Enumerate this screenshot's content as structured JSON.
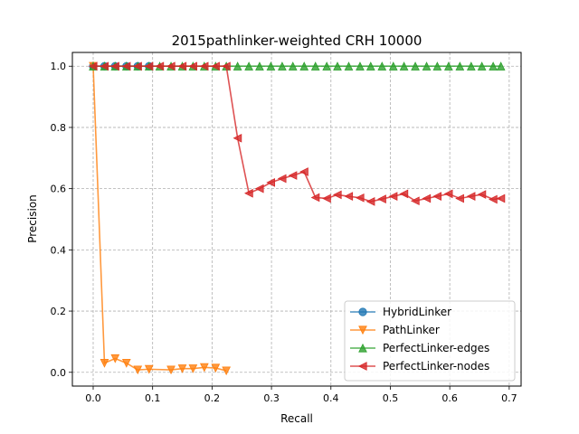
{
  "chart_data": {
    "type": "line",
    "title": "2015pathlinker-weighted CRH 10000",
    "xlabel": "Recall",
    "ylabel": "Precision",
    "xlim": [
      -0.035,
      0.72
    ],
    "ylim": [
      -0.045,
      1.045
    ],
    "xticks": [
      0.0,
      0.1,
      0.2,
      0.3,
      0.4,
      0.5,
      0.6,
      0.7
    ],
    "xtick_labels": [
      "0.0",
      "0.1",
      "0.2",
      "0.3",
      "0.4",
      "0.5",
      "0.6",
      "0.7"
    ],
    "yticks": [
      0.0,
      0.2,
      0.4,
      0.6,
      0.8,
      1.0
    ],
    "ytick_labels": [
      "0.0",
      "0.2",
      "0.4",
      "0.6",
      "0.8",
      "1.0"
    ],
    "grid": true,
    "legend_position": "lower-right",
    "series": [
      {
        "name": "HybridLinker",
        "color": "#1f77b4",
        "marker": "circle",
        "points": [
          [
            0.0,
            1.0
          ],
          [
            0.019,
            1.0
          ],
          [
            0.037,
            1.0
          ],
          [
            0.056,
            1.0
          ],
          [
            0.075,
            1.0
          ],
          [
            0.094,
            1.0
          ]
        ]
      },
      {
        "name": "PathLinker",
        "color": "#ff7f0e",
        "marker": "triangle-down",
        "points": [
          [
            0.0,
            1.0
          ],
          [
            0.019,
            0.03
          ],
          [
            0.037,
            0.045
          ],
          [
            0.056,
            0.03
          ],
          [
            0.075,
            0.008
          ],
          [
            0.094,
            0.01
          ],
          [
            0.131,
            0.008
          ],
          [
            0.15,
            0.012
          ],
          [
            0.168,
            0.012
          ],
          [
            0.187,
            0.016
          ],
          [
            0.206,
            0.014
          ],
          [
            0.224,
            0.005
          ]
        ]
      },
      {
        "name": "PerfectLinker-edges",
        "color": "#2ca02c",
        "marker": "triangle-up",
        "points": [
          [
            0.0,
            1.0
          ],
          [
            0.019,
            1.0
          ],
          [
            0.037,
            1.0
          ],
          [
            0.056,
            1.0
          ],
          [
            0.075,
            1.0
          ],
          [
            0.094,
            1.0
          ],
          [
            0.112,
            1.0
          ],
          [
            0.131,
            1.0
          ],
          [
            0.15,
            1.0
          ],
          [
            0.168,
            1.0
          ],
          [
            0.187,
            1.0
          ],
          [
            0.206,
            1.0
          ],
          [
            0.224,
            1.0
          ],
          [
            0.243,
            1.0
          ],
          [
            0.262,
            1.0
          ],
          [
            0.28,
            1.0
          ],
          [
            0.299,
            1.0
          ],
          [
            0.318,
            1.0
          ],
          [
            0.336,
            1.0
          ],
          [
            0.355,
            1.0
          ],
          [
            0.374,
            1.0
          ],
          [
            0.393,
            1.0
          ],
          [
            0.411,
            1.0
          ],
          [
            0.43,
            1.0
          ],
          [
            0.449,
            1.0
          ],
          [
            0.467,
            1.0
          ],
          [
            0.486,
            1.0
          ],
          [
            0.505,
            1.0
          ],
          [
            0.523,
            1.0
          ],
          [
            0.542,
            1.0
          ],
          [
            0.561,
            1.0
          ],
          [
            0.579,
            1.0
          ],
          [
            0.598,
            1.0
          ],
          [
            0.617,
            1.0
          ],
          [
            0.636,
            1.0
          ],
          [
            0.654,
            1.0
          ],
          [
            0.673,
            1.0
          ],
          [
            0.686,
            1.0
          ]
        ]
      },
      {
        "name": "PerfectLinker-nodes",
        "color": "#d62728",
        "marker": "triangle-left",
        "points": [
          [
            0.0,
            1.0
          ],
          [
            0.019,
            1.0
          ],
          [
            0.037,
            1.0
          ],
          [
            0.056,
            1.0
          ],
          [
            0.075,
            1.0
          ],
          [
            0.094,
            1.0
          ],
          [
            0.112,
            1.0
          ],
          [
            0.131,
            1.0
          ],
          [
            0.15,
            1.0
          ],
          [
            0.168,
            1.0
          ],
          [
            0.187,
            1.0
          ],
          [
            0.206,
            1.0
          ],
          [
            0.224,
            1.0
          ],
          [
            0.243,
            0.765
          ],
          [
            0.262,
            0.585
          ],
          [
            0.28,
            0.6
          ],
          [
            0.299,
            0.62
          ],
          [
            0.318,
            0.633
          ],
          [
            0.336,
            0.643
          ],
          [
            0.355,
            0.655
          ],
          [
            0.374,
            0.571
          ],
          [
            0.393,
            0.568
          ],
          [
            0.411,
            0.58
          ],
          [
            0.43,
            0.575
          ],
          [
            0.449,
            0.57
          ],
          [
            0.467,
            0.558
          ],
          [
            0.486,
            0.566
          ],
          [
            0.505,
            0.575
          ],
          [
            0.523,
            0.583
          ],
          [
            0.542,
            0.56
          ],
          [
            0.561,
            0.568
          ],
          [
            0.579,
            0.575
          ],
          [
            0.598,
            0.583
          ],
          [
            0.617,
            0.568
          ],
          [
            0.636,
            0.575
          ],
          [
            0.654,
            0.581
          ],
          [
            0.673,
            0.565
          ],
          [
            0.686,
            0.568
          ]
        ]
      }
    ]
  }
}
